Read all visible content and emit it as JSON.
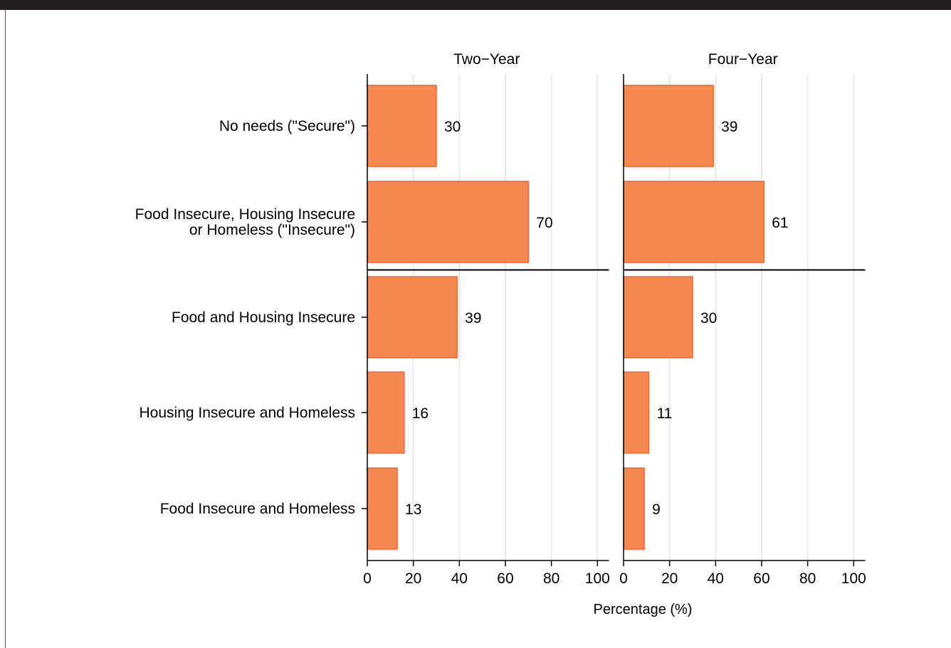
{
  "chart_data": {
    "type": "bar",
    "orientation": "horizontal",
    "categories": [
      [
        "No needs (\"Secure\")"
      ],
      [
        "Food Insecure, Housing Insecure",
        "or Homeless (\"Insecure\")"
      ],
      [
        "Food and Housing Insecure"
      ],
      [
        "Housing Insecure and Homeless"
      ],
      [
        "Food Insecure and Homeless"
      ]
    ],
    "panels": [
      {
        "title": "Two−Year",
        "values": [
          30,
          70,
          39,
          16,
          13
        ]
      },
      {
        "title": "Four−Year",
        "values": [
          39,
          61,
          30,
          11,
          9
        ]
      }
    ],
    "xlabel": "Percentage (%)",
    "xlim": [
      0,
      105
    ],
    "xticks": [
      0,
      20,
      40,
      60,
      80,
      100
    ],
    "separator_after_category": 1,
    "grid": "vertical",
    "bar_color": "#f5884f",
    "bar_edge_color": "#e8663a",
    "grid_color": "#e3ecea",
    "frame_color": "#231f20"
  }
}
